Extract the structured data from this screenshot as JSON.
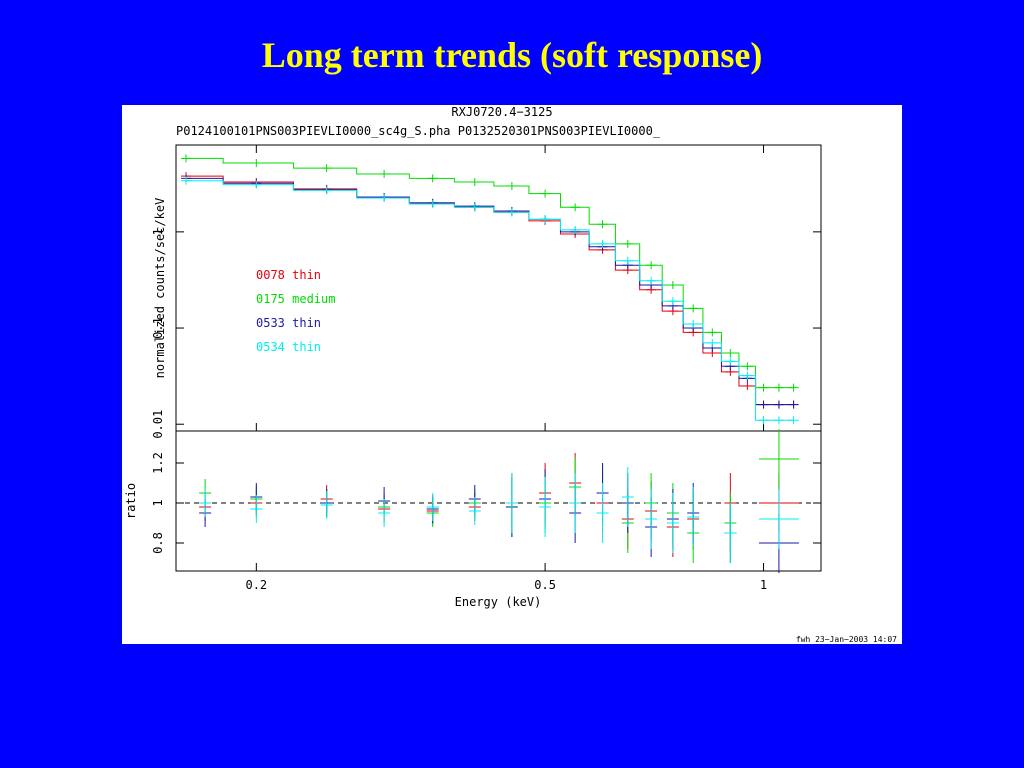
{
  "slide": {
    "title": "Long term trends (soft response)"
  },
  "colors": {
    "background": "#0000ff",
    "title": "#ffff00",
    "series": [
      "#e8000b",
      "#00dd00",
      "#1a1aa8",
      "#00eeee"
    ]
  },
  "chart_data": [
    {
      "type": "scatter",
      "title": "RXJ0720.4−3125",
      "subtitle": "P0124100101PNS003PIEVLI0000_sc4g_S.pha  P0132520301PNS003PIEVLI0000_",
      "xlabel": "",
      "ylabel": "normalized counts/sec/keV",
      "xscale": "log",
      "yscale": "log",
      "xlim": [
        0.155,
        1.2
      ],
      "ylim": [
        0.0085,
        8
      ],
      "ytick_labels": [
        "0.01",
        "0.1",
        "1"
      ],
      "ytick_values": [
        0.01,
        0.1,
        1
      ],
      "legend_placement": "center-left",
      "series": [
        {
          "name": "0078 thin",
          "color": "#e8000b",
          "x": [
            0.16,
            0.2,
            0.25,
            0.3,
            0.35,
            0.4,
            0.45,
            0.5,
            0.55,
            0.6,
            0.65,
            0.7,
            0.75,
            0.8,
            0.85,
            0.9,
            0.95,
            1.0,
            1.05,
            1.1
          ],
          "y": [
            3.8,
            3.3,
            2.8,
            2.3,
            2.0,
            1.8,
            1.6,
            1.3,
            0.95,
            0.65,
            0.4,
            0.25,
            0.15,
            0.09,
            0.055,
            0.035,
            0.025,
            0.016,
            0.016,
            0.016
          ]
        },
        {
          "name": "0175 medium",
          "color": "#00dd00",
          "x": [
            0.16,
            0.2,
            0.25,
            0.3,
            0.35,
            0.4,
            0.45,
            0.5,
            0.55,
            0.6,
            0.65,
            0.7,
            0.75,
            0.8,
            0.85,
            0.9,
            0.95,
            1.0,
            1.05,
            1.1
          ],
          "y": [
            5.8,
            5.2,
            4.6,
            4.0,
            3.6,
            3.3,
            3.0,
            2.5,
            1.8,
            1.2,
            0.75,
            0.45,
            0.28,
            0.16,
            0.09,
            0.055,
            0.04,
            0.024,
            0.024,
            0.024
          ]
        },
        {
          "name": "0533 thin",
          "color": "#1a1aa8",
          "x": [
            0.16,
            0.2,
            0.25,
            0.3,
            0.35,
            0.4,
            0.45,
            0.5,
            0.55,
            0.6,
            0.65,
            0.7,
            0.75,
            0.8,
            0.85,
            0.9,
            0.95,
            1.0,
            1.05,
            1.1
          ],
          "y": [
            3.6,
            3.2,
            2.75,
            2.3,
            2.0,
            1.85,
            1.65,
            1.35,
            1.0,
            0.7,
            0.45,
            0.28,
            0.17,
            0.1,
            0.062,
            0.04,
            0.03,
            0.016,
            0.016,
            0.016
          ]
        },
        {
          "name": "0534 thin",
          "color": "#00eeee",
          "x": [
            0.16,
            0.2,
            0.25,
            0.3,
            0.35,
            0.4,
            0.45,
            0.5,
            0.55,
            0.6,
            0.65,
            0.7,
            0.75,
            0.8,
            0.85,
            0.9,
            0.95,
            1.0,
            1.05,
            1.1
          ],
          "y": [
            3.4,
            3.1,
            2.7,
            2.25,
            1.95,
            1.8,
            1.6,
            1.35,
            1.05,
            0.75,
            0.5,
            0.31,
            0.19,
            0.11,
            0.07,
            0.045,
            0.032,
            0.011,
            0.011,
            0.011
          ]
        }
      ]
    },
    {
      "type": "scatter",
      "title": "",
      "xlabel": "Energy (keV)",
      "ylabel": "ratio",
      "xscale": "log",
      "xlim": [
        0.155,
        1.2
      ],
      "ylim": [
        0.66,
        1.36
      ],
      "xtick_labels": [
        "0.2",
        "0.5",
        "1"
      ],
      "xtick_values": [
        0.2,
        0.5,
        1
      ],
      "ytick_labels": [
        "0.8",
        "1",
        "1.2"
      ],
      "ytick_values": [
        0.8,
        1.0,
        1.2
      ],
      "reference_line": 1,
      "series": [
        {
          "name": "0078 thin",
          "color": "#e8000b",
          "x": [
            0.17,
            0.2,
            0.25,
            0.3,
            0.35,
            0.4,
            0.45,
            0.5,
            0.55,
            0.6,
            0.65,
            0.7,
            0.75,
            0.8,
            0.9,
            1.05
          ],
          "y": [
            0.98,
            1.0,
            1.02,
            0.97,
            0.96,
            0.98,
            1.0,
            1.05,
            1.1,
            1.0,
            0.92,
            0.96,
            0.88,
            0.92,
            1.0,
            1.0
          ]
        },
        {
          "name": "0175 medium",
          "color": "#00dd00",
          "x": [
            0.17,
            0.2,
            0.25,
            0.3,
            0.35,
            0.4,
            0.45,
            0.5,
            0.55,
            0.6,
            0.65,
            0.7,
            0.75,
            0.8,
            0.9,
            1.05
          ],
          "y": [
            1.05,
            1.02,
            1.0,
            0.98,
            0.95,
            1.0,
            0.98,
            1.0,
            1.08,
            1.05,
            0.9,
            1.0,
            0.95,
            0.85,
            0.9,
            1.22
          ]
        },
        {
          "name": "0533 thin",
          "color": "#1a1aa8",
          "x": [
            0.17,
            0.2,
            0.25,
            0.3,
            0.35,
            0.4,
            0.45,
            0.5,
            0.55,
            0.6,
            0.65,
            0.7,
            0.75,
            0.8,
            0.9,
            1.05
          ],
          "y": [
            0.95,
            1.03,
            1.0,
            1.01,
            0.97,
            1.02,
            0.98,
            1.02,
            0.95,
            1.05,
            1.0,
            0.88,
            0.92,
            0.95,
            0.85,
            0.8
          ]
        },
        {
          "name": "0534 thin",
          "color": "#00eeee",
          "x": [
            0.17,
            0.2,
            0.25,
            0.3,
            0.35,
            0.4,
            0.45,
            0.5,
            0.55,
            0.6,
            0.65,
            0.7,
            0.75,
            0.8,
            0.9,
            1.05
          ],
          "y": [
            1.0,
            0.97,
            0.99,
            0.95,
            0.98,
            0.96,
            1.0,
            0.98,
            1.0,
            0.95,
            1.03,
            0.92,
            0.9,
            0.93,
            0.85,
            0.92
          ]
        }
      ]
    }
  ],
  "footer": {
    "stamp": "fwh 23−Jan−2003 14:07"
  }
}
